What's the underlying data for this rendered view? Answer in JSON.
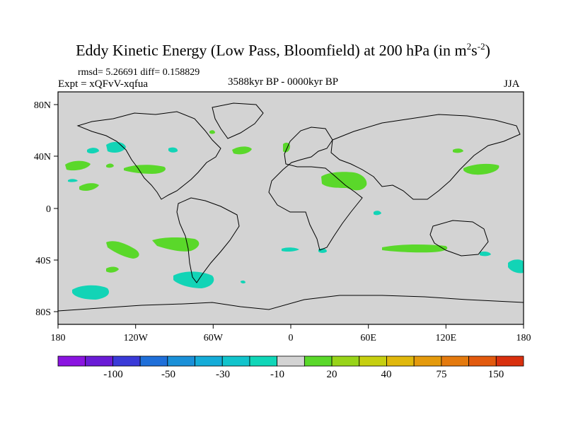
{
  "figure": {
    "title_main": "Eddy Kinetic Energy (Low Pass, Bloomfield) at 200 hPa (in m",
    "title_sup1": "2",
    "title_mid": "s",
    "title_sup2": "-2",
    "title_end": ")",
    "stats": "rmsd= 5.26691 diff= 0.158829",
    "experiment": "Expt = xQFvV-xqfua",
    "period": "3588kyr BP - 0000kyr BP",
    "season": "JJA"
  },
  "map": {
    "type": "filled-contour difference map on equirectangular world map",
    "lon_ticks": [
      "180",
      "120W",
      "60W",
      "0",
      "60E",
      "120E",
      "180"
    ],
    "lat_ticks": [
      "80N",
      "40N",
      "0",
      "40S",
      "80S"
    ],
    "ocean_land_background": "#d3d3d3",
    "coastline_color": "#000000"
  },
  "colorbar": {
    "colors": [
      "#8a14e0",
      "#6a1bd6",
      "#3a3ad8",
      "#1f6fd9",
      "#1a90d8",
      "#15acd8",
      "#12c4cc",
      "#10d6b8",
      "#d3d3d3",
      "#5ad82a",
      "#98d419",
      "#c6cf10",
      "#e0b80c",
      "#e49a0c",
      "#e47a0e",
      "#e25a0e",
      "#d9300e"
    ],
    "labels": [
      "-100",
      "-50",
      "-30",
      "-10",
      "20",
      "40",
      "75",
      "150"
    ]
  }
}
